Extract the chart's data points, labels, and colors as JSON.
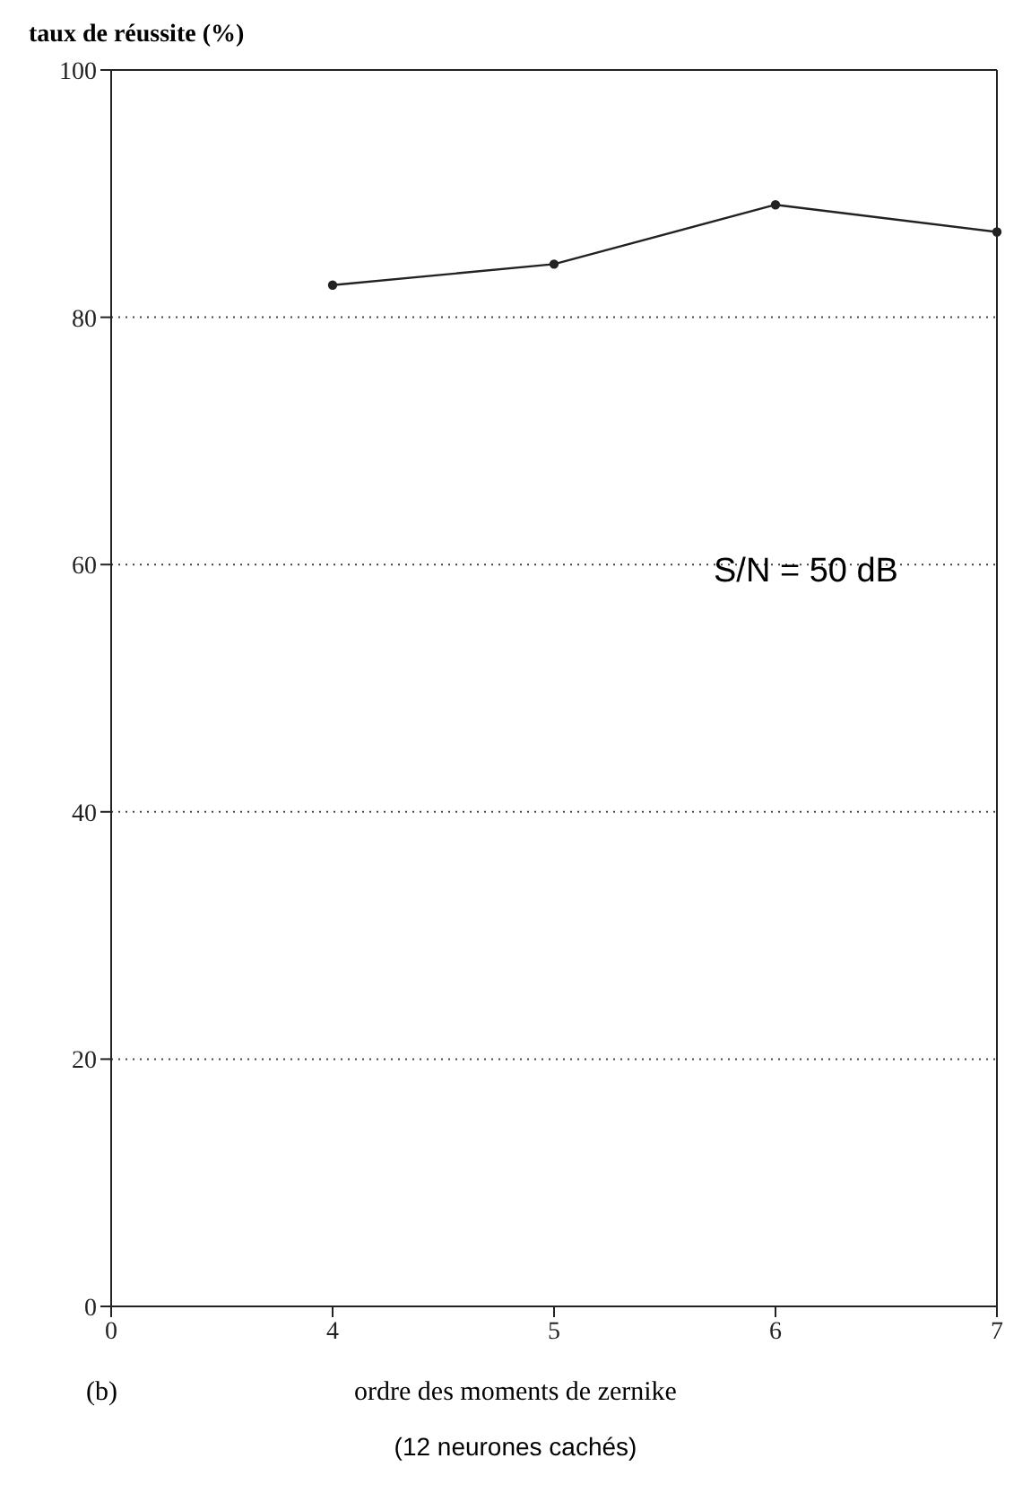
{
  "chart_data": {
    "type": "line",
    "ylabel": "taux de réussite (%)",
    "xlabel": "ordre des moments de zernike",
    "categories": [
      "0",
      "4",
      "5",
      "6",
      "7"
    ],
    "series": [
      {
        "color": "#222222",
        "values": [
          null,
          82.6,
          84.3,
          89.1,
          86.9
        ]
      }
    ],
    "ylim": [
      0,
      100
    ],
    "yticks": [
      0,
      20,
      40,
      60,
      80,
      100
    ],
    "grid": "y",
    "marker": "circle",
    "line_style": "solid",
    "legend": false,
    "annotations": [
      "S/N = 50 dB",
      "(b)",
      "(12 neurones cachés)"
    ]
  }
}
